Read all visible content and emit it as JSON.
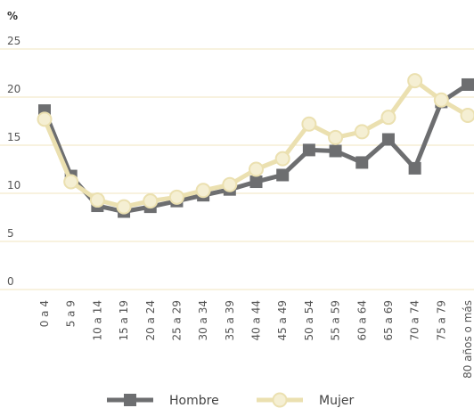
{
  "chart_data": {
    "type": "line",
    "y_label": "%",
    "categories": [
      "0 a 4",
      "5 a 9",
      "10 a 14",
      "15 a 19",
      "20 a 24",
      "25 a 29",
      "30 a 34",
      "35 a 39",
      "40 a 44",
      "45 a 49",
      "50 a 54",
      "55 a 59",
      "60 a 64",
      "65 a 69",
      "70 a 74",
      "75 a 79",
      "80 años o más"
    ],
    "series": [
      {
        "name": "Hombre",
        "color": "#6d6e70",
        "marker": "square",
        "values": [
          18.6,
          11.8,
          8.7,
          8.1,
          8.6,
          9.2,
          9.8,
          10.4,
          11.2,
          11.9,
          14.5,
          14.4,
          13.2,
          15.6,
          12.6,
          19.5,
          21.3
        ]
      },
      {
        "name": "Mujer",
        "color": "#ebe0b0",
        "marker": "circle",
        "values": [
          17.7,
          11.2,
          9.3,
          8.6,
          9.2,
          9.6,
          10.3,
          10.9,
          12.5,
          13.6,
          17.2,
          15.8,
          16.4,
          17.9,
          21.7,
          19.7,
          18.1
        ]
      }
    ],
    "ylim": [
      0,
      25
    ],
    "yticks": [
      0,
      5,
      10,
      15,
      20,
      25
    ],
    "grid": true
  }
}
